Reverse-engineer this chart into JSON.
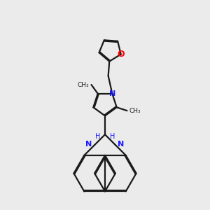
{
  "background_color": "#ebebeb",
  "bond_color": "#1a1a1a",
  "nitrogen_color": "#1a1aff",
  "oxygen_color": "#ff0000",
  "line_width": 1.6,
  "dbo": 0.045,
  "figsize": [
    3.0,
    3.0
  ],
  "dpi": 100,
  "xlim": [
    -4.5,
    4.5
  ],
  "ylim": [
    -5.0,
    5.5
  ]
}
